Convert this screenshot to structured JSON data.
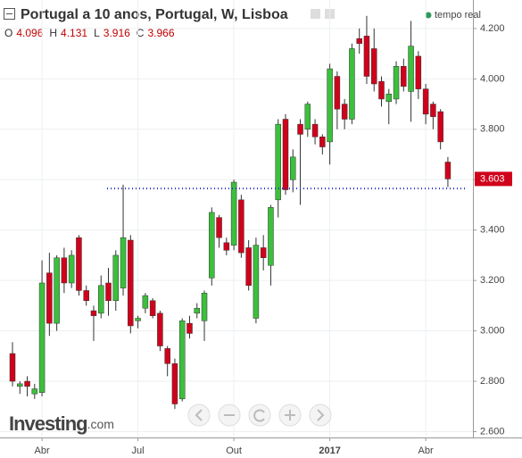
{
  "chart_data": {
    "type": "candlestick",
    "title": "Portugal a 10 anos, Portugal, W, Lisboa",
    "realtime": "tempo real",
    "logo": "Investing",
    "logo_suffix": ".com",
    "ohlc": [
      {
        "label": "O",
        "value": 4.096
      },
      {
        "label": "H",
        "value": 4.131
      },
      {
        "label": "L",
        "value": 3.916
      },
      {
        "label": "C",
        "value": 3.966
      }
    ],
    "categories": [
      null,
      null,
      null,
      null,
      "Abr",
      null,
      null,
      null,
      null,
      null,
      null,
      null,
      null,
      null,
      null,
      null,
      null,
      "Jul",
      null,
      null,
      null,
      null,
      null,
      null,
      null,
      null,
      null,
      null,
      null,
      null,
      "Out",
      null,
      null,
      null,
      null,
      null,
      null,
      null,
      null,
      null,
      null,
      null,
      null,
      "2017",
      null,
      null,
      null,
      null,
      null,
      null,
      null,
      null,
      null,
      null,
      null,
      null,
      "Abr",
      null,
      null,
      null
    ],
    "open": [
      2.91,
      2.78,
      2.8,
      2.75,
      2.755,
      3.23,
      3.03,
      3.29,
      3.19,
      3.37,
      3.16,
      3.08,
      3.07,
      3.19,
      3.12,
      3.17,
      3.36,
      3.04,
      3.09,
      3.12,
      3.07,
      2.93,
      2.87,
      2.73,
      3.03,
      3.07,
      3.04,
      3.21,
      3.45,
      3.35,
      3.34,
      3.52,
      3.33,
      3.05,
      3.33,
      3.26,
      3.52,
      3.84,
      3.6,
      3.82,
      3.8,
      3.82,
      3.77,
      3.75,
      4.01,
      3.9,
      3.84,
      4.16,
      4.17,
      4.12,
      3.99,
      3.91,
      3.92,
      4.05,
      3.95,
      4.09,
      3.96,
      3.9,
      3.87,
      3.67
    ],
    "high": [
      2.955,
      2.8,
      2.82,
      2.79,
      3.28,
      3.31,
      3.3,
      3.33,
      3.32,
      3.38,
      3.18,
      3.1,
      3.22,
      3.25,
      3.32,
      3.58,
      3.38,
      3.06,
      3.15,
      3.13,
      3.08,
      2.94,
      2.89,
      3.05,
      3.06,
      3.11,
      3.16,
      3.49,
      3.46,
      3.37,
      3.6,
      3.54,
      3.36,
      3.37,
      3.38,
      3.5,
      3.84,
      3.86,
      3.72,
      3.84,
      3.91,
      3.84,
      3.78,
      4.06,
      4.03,
      3.92,
      4.14,
      4.2,
      4.25,
      4.2,
      4.01,
      3.96,
      4.07,
      4.08,
      4.23,
      4.11,
      3.98,
      3.91,
      3.88,
      3.69
    ],
    "low": [
      2.78,
      2.75,
      2.74,
      2.73,
      2.74,
      2.98,
      3.0,
      3.15,
      3.17,
      3.14,
      3.1,
      2.96,
      3.05,
      3.06,
      3.08,
      3.14,
      2.99,
      3.01,
      3.07,
      3.05,
      2.92,
      2.82,
      2.69,
      2.72,
      2.97,
      3.05,
      2.96,
      3.18,
      3.33,
      3.3,
      3.32,
      3.29,
      3.16,
      3.03,
      3.24,
      3.18,
      3.45,
      3.54,
      3.55,
      3.5,
      3.77,
      3.74,
      3.7,
      3.66,
      3.8,
      3.8,
      3.82,
      4.1,
      3.98,
      3.95,
      3.89,
      3.82,
      3.9,
      3.95,
      3.83,
      3.92,
      3.82,
      3.8,
      3.72,
      3.57
    ],
    "close": [
      2.8,
      2.79,
      2.78,
      2.77,
      3.19,
      3.03,
      3.29,
      3.19,
      3.3,
      3.16,
      3.12,
      3.06,
      3.18,
      3.12,
      3.3,
      3.37,
      3.02,
      3.05,
      3.14,
      3.06,
      2.94,
      2.87,
      2.71,
      3.04,
      2.99,
      3.09,
      3.15,
      3.47,
      3.37,
      3.32,
      3.59,
      3.31,
      3.18,
      3.34,
      3.29,
      3.49,
      3.82,
      3.56,
      3.69,
      3.78,
      3.9,
      3.77,
      3.73,
      4.04,
      3.88,
      3.84,
      4.12,
      4.14,
      4.01,
      3.98,
      3.92,
      3.94,
      4.05,
      3.97,
      4.13,
      3.96,
      3.86,
      3.85,
      3.75,
      3.603
    ],
    "up_color": "#3cbf3c",
    "down_color": "#d0021b",
    "hline": 3.565,
    "hline_color": "#2233cc",
    "ylim": [
      2.577,
      4.313
    ],
    "yticks": [
      {
        "value": 2.6,
        "label": "2.600"
      },
      {
        "value": 2.8,
        "label": "2.800"
      },
      {
        "value": 3.0,
        "label": "3.000"
      },
      {
        "value": 3.2,
        "label": "3.200"
      },
      {
        "value": 3.4,
        "label": "3.400"
      },
      {
        "value": 3.6,
        "label": "3.600"
      },
      {
        "value": 3.8,
        "label": "3.800"
      },
      {
        "value": 4.0,
        "label": "4.000"
      },
      {
        "value": 4.2,
        "label": "4.200"
      }
    ],
    "grid": true
  }
}
